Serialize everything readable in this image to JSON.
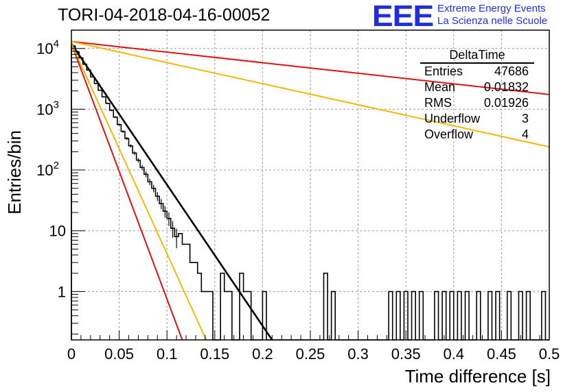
{
  "title": "TORI-04-2018-04-16-00052",
  "logo": {
    "mark": "EEE",
    "line1": "Extreme Energy Events",
    "line2": "La Scienza nelle Scuole"
  },
  "colors": {
    "histogram": "#000000",
    "fit_main": "#000000",
    "curve_red": "#e01010",
    "curve_orange": "#f5b800",
    "logo": "#1f2fe0",
    "grid": "#9a9a9a"
  },
  "stats": {
    "title": "DeltaTime",
    "rows": [
      {
        "label": "Entries",
        "value": "47686"
      },
      {
        "label": "Mean",
        "value": "0.01832"
      },
      {
        "label": "RMS",
        "value": "0.01926"
      },
      {
        "label": "Underflow",
        "value": "3"
      },
      {
        "label": "Overflow",
        "value": "4"
      }
    ]
  },
  "chart_data": {
    "type": "line",
    "xlabel": "Time difference [s]",
    "ylabel": "Entries/bin",
    "xlim": [
      0,
      0.5
    ],
    "ylim": [
      0.16,
      20000
    ],
    "yscale": "log",
    "grid": true,
    "x_ticks": [
      "0",
      "0.05",
      "0.1",
      "0.15",
      "0.2",
      "0.25",
      "0.3",
      "0.35",
      "0.4",
      "0.45",
      "0.5"
    ],
    "y_ticks": [
      {
        "value": 1,
        "label": "1"
      },
      {
        "value": 10,
        "label": "10"
      },
      {
        "value": 100,
        "label": "10",
        "exp": "2"
      },
      {
        "value": 1000,
        "label": "10",
        "exp": "3"
      },
      {
        "value": 10000,
        "label": "10",
        "exp": "4"
      }
    ],
    "bin_width": 0.004,
    "histogram": [
      11000,
      8800,
      7000,
      5500,
      4400,
      3400,
      2650,
      2050,
      1600,
      1250,
      960,
      740,
      560,
      430,
      330,
      250,
      190,
      145,
      110,
      85,
      64,
      50,
      37,
      28,
      21,
      16,
      11,
      8,
      9,
      6,
      6,
      3,
      3,
      2,
      1,
      1,
      1,
      0,
      0,
      2,
      1,
      1,
      0,
      0,
      2,
      1,
      1,
      0,
      0,
      0,
      1,
      0,
      0,
      0,
      0,
      0,
      0,
      0,
      0,
      0,
      0,
      0,
      0,
      0,
      0,
      0,
      0,
      0,
      0,
      0,
      0,
      0,
      0,
      0,
      0,
      0,
      0,
      0,
      0,
      0,
      0,
      0,
      0,
      0,
      0,
      0,
      0,
      0,
      0,
      0,
      0,
      0,
      0,
      0,
      0,
      0,
      0,
      0,
      0,
      0,
      0,
      0,
      0,
      0,
      0,
      0,
      0,
      0,
      0,
      0,
      0,
      0,
      0,
      0,
      0,
      0,
      0,
      0,
      0,
      0,
      0,
      0,
      0,
      0,
      0
    ],
    "histogram_overrides": [
      {
        "bin": 66,
        "value": 2
      },
      {
        "bin": 68,
        "value": 1
      },
      {
        "bin": 83,
        "value": 1
      },
      {
        "bin": 85,
        "value": 1
      },
      {
        "bin": 87,
        "value": 1
      },
      {
        "bin": 89,
        "value": 1
      },
      {
        "bin": 91,
        "value": 1
      },
      {
        "bin": 95,
        "value": 1
      },
      {
        "bin": 97,
        "value": 1
      },
      {
        "bin": 99,
        "value": 1
      },
      {
        "bin": 101,
        "value": 1
      },
      {
        "bin": 103,
        "value": 1
      },
      {
        "bin": 106,
        "value": 1
      },
      {
        "bin": 109,
        "value": 1
      },
      {
        "bin": 111,
        "value": 1
      },
      {
        "bin": 114,
        "value": 1
      },
      {
        "bin": 117,
        "value": 1
      },
      {
        "bin": 119,
        "value": 1
      },
      {
        "bin": 123,
        "value": 1
      }
    ],
    "series": [
      {
        "color": "#000000",
        "x": [
          0,
          0.21
        ],
        "y": [
          12000,
          0.16
        ]
      },
      {
        "color": "#e01010",
        "x": [
          0,
          0.116
        ],
        "y": [
          12000,
          0.16
        ]
      },
      {
        "color": "#f5b800",
        "x": [
          0,
          0.141
        ],
        "y": [
          12000,
          0.16
        ]
      },
      {
        "color": "#e01010",
        "x": [
          0,
          0.5
        ],
        "y": [
          13000,
          1750
        ]
      },
      {
        "color": "#f5b800",
        "x": [
          0,
          0.5
        ],
        "y": [
          13000,
          240
        ]
      }
    ]
  }
}
